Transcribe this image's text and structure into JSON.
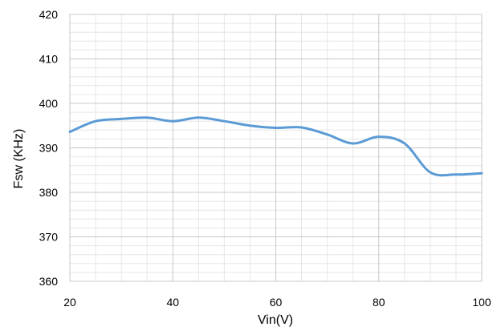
{
  "chart_data": {
    "type": "line",
    "title": "",
    "xlabel": "Vin(V)",
    "ylabel": "Fsw (KHz)",
    "xlim": [
      20,
      100
    ],
    "ylim": [
      360,
      420
    ],
    "xticks": [
      20,
      40,
      60,
      80,
      100
    ],
    "yticks": [
      360,
      370,
      380,
      390,
      400,
      410,
      420
    ],
    "grid": true,
    "legend": "none",
    "series": [
      {
        "color": "#5B9BD5",
        "x": [
          20,
          25,
          30,
          35,
          40,
          45,
          50,
          55,
          60,
          65,
          70,
          75,
          80,
          85,
          90,
          95,
          100
        ],
        "y": [
          393.6,
          396.0,
          396.5,
          396.8,
          396.0,
          396.8,
          396.0,
          395.0,
          394.5,
          394.6,
          393.0,
          391.0,
          392.5,
          391.0,
          384.5,
          384.0,
          384.3
        ]
      }
    ]
  }
}
